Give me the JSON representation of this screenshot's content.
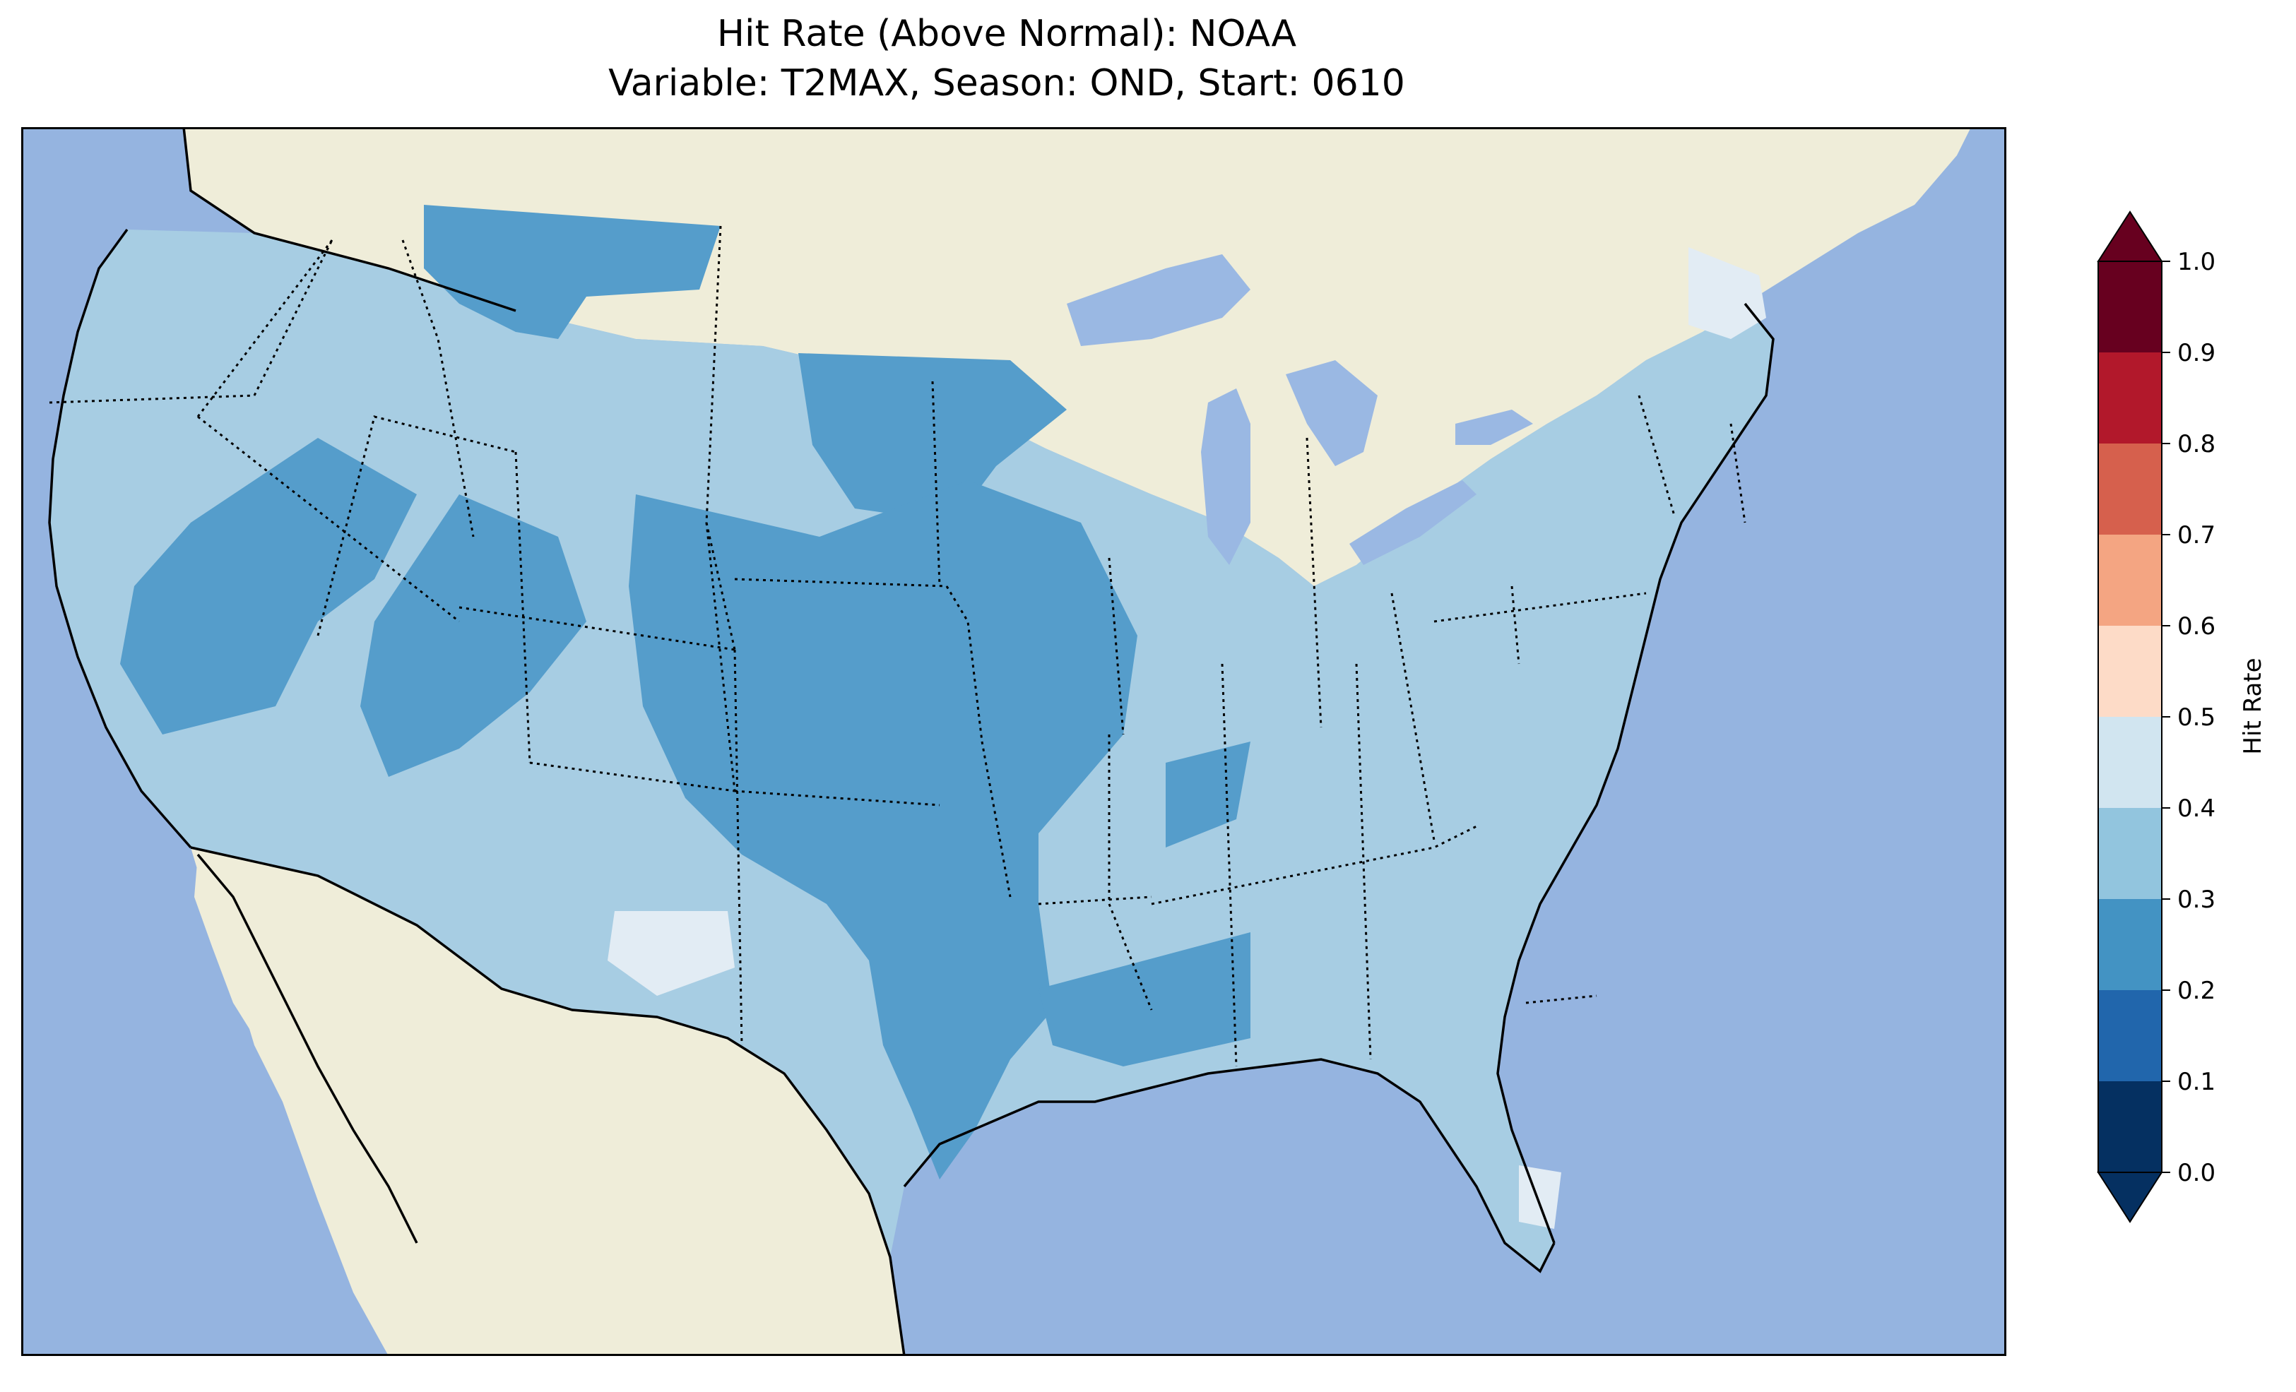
{
  "title": {
    "line1": "Hit Rate (Above Normal): NOAA",
    "line2": "Variable: T2MAX, Season: OND, Start: 0610"
  },
  "colors": {
    "ocean": "#95b4e0",
    "land": "#efedd9",
    "lake": "#9ab8e3",
    "class_0_2_0_3": "#559dcb",
    "class_0_3_0_4": "#a7cde3",
    "class_0_4_0_5": "#e2ecf4"
  },
  "colorbar": {
    "label": "Hit Rate",
    "ticks": [
      "0.0",
      "0.1",
      "0.2",
      "0.3",
      "0.4",
      "0.5",
      "0.6",
      "0.7",
      "0.8",
      "0.9",
      "1.0"
    ],
    "bins": [
      {
        "from": 0.0,
        "to": 0.1,
        "color": "#053061"
      },
      {
        "from": 0.1,
        "to": 0.2,
        "color": "#2166ac"
      },
      {
        "from": 0.2,
        "to": 0.3,
        "color": "#4393c3"
      },
      {
        "from": 0.3,
        "to": 0.4,
        "color": "#92c5de"
      },
      {
        "from": 0.4,
        "to": 0.5,
        "color": "#d1e5f0"
      },
      {
        "from": 0.5,
        "to": 0.6,
        "color": "#fddbc7"
      },
      {
        "from": 0.6,
        "to": 0.7,
        "color": "#f4a582"
      },
      {
        "from": 0.7,
        "to": 0.8,
        "color": "#d6604d"
      },
      {
        "from": 0.8,
        "to": 0.9,
        "color": "#b2182b"
      },
      {
        "from": 0.9,
        "to": 1.0,
        "color": "#67001f"
      }
    ],
    "extend": "both"
  }
}
